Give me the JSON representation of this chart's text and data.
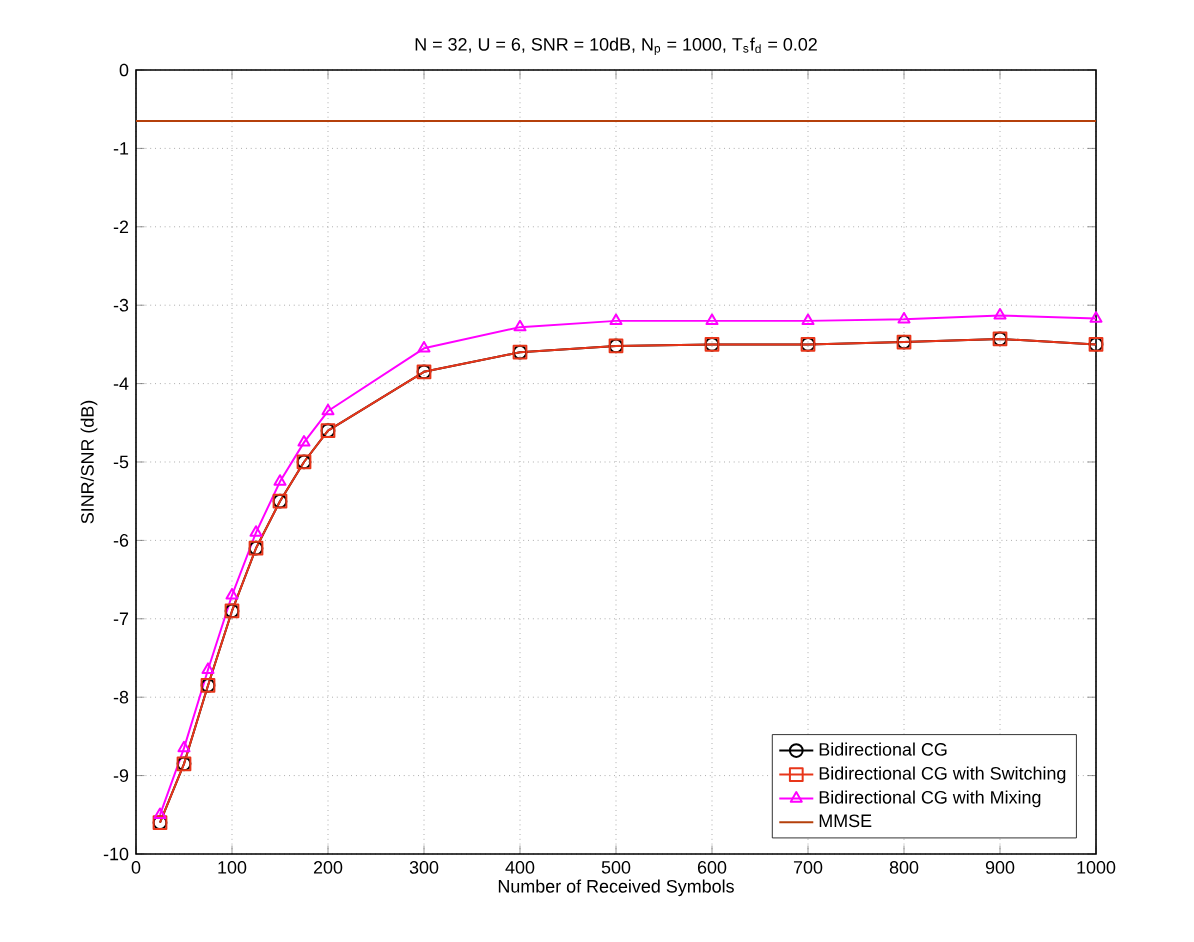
{
  "chart_data": {
    "type": "line",
    "title": "N = 32, U = 6, SNR = 10dB, N$_{p}$ = 1000, T$_{s}$f$_{d}$ = 0.02",
    "xlabel": "Number of Received Symbols",
    "ylabel": "SINR/SNR (dB)",
    "x": [
      25,
      50,
      75,
      100,
      125,
      150,
      175,
      200,
      300,
      400,
      500,
      600,
      700,
      800,
      900,
      1000
    ],
    "series": [
      {
        "name": "Bidirectional CG",
        "color": "#000000",
        "marker": "circle",
        "values": [
          -9.6,
          -8.85,
          -7.85,
          -6.9,
          -6.1,
          -5.5,
          -5.0,
          -4.6,
          -3.85,
          -3.6,
          -3.52,
          -3.5,
          -3.5,
          -3.47,
          -3.43,
          -3.5
        ]
      },
      {
        "name": "Bidirectional CG with Switching",
        "color": "#e8361a",
        "marker": "square",
        "values": [
          -9.6,
          -8.85,
          -7.85,
          -6.9,
          -6.1,
          -5.5,
          -5.0,
          -4.6,
          -3.85,
          -3.6,
          -3.52,
          -3.5,
          -3.5,
          -3.47,
          -3.43,
          -3.5
        ]
      },
      {
        "name": "Bidirectional CG with Mixing",
        "color": "#ff00ff",
        "marker": "triangle",
        "values": [
          -9.5,
          -8.65,
          -7.65,
          -6.7,
          -5.9,
          -5.25,
          -4.75,
          -4.35,
          -3.55,
          -3.28,
          -3.2,
          -3.2,
          -3.2,
          -3.18,
          -3.13,
          -3.17
        ]
      },
      {
        "name": "MMSE",
        "color": "#b5400b",
        "marker": "none",
        "x": [
          0,
          1000
        ],
        "values": [
          -0.65,
          -0.65
        ]
      }
    ],
    "xlim": [
      0,
      1000
    ],
    "xticks": [
      0,
      100,
      200,
      300,
      400,
      500,
      600,
      700,
      800,
      900,
      1000
    ],
    "ylim": [
      -10,
      0
    ],
    "yticks": [
      -10,
      -9,
      -8,
      -7,
      -6,
      -5,
      -4,
      -3,
      -2,
      -1,
      0
    ],
    "grid": true,
    "legend": "bottom right",
    "line_style": "solid"
  }
}
